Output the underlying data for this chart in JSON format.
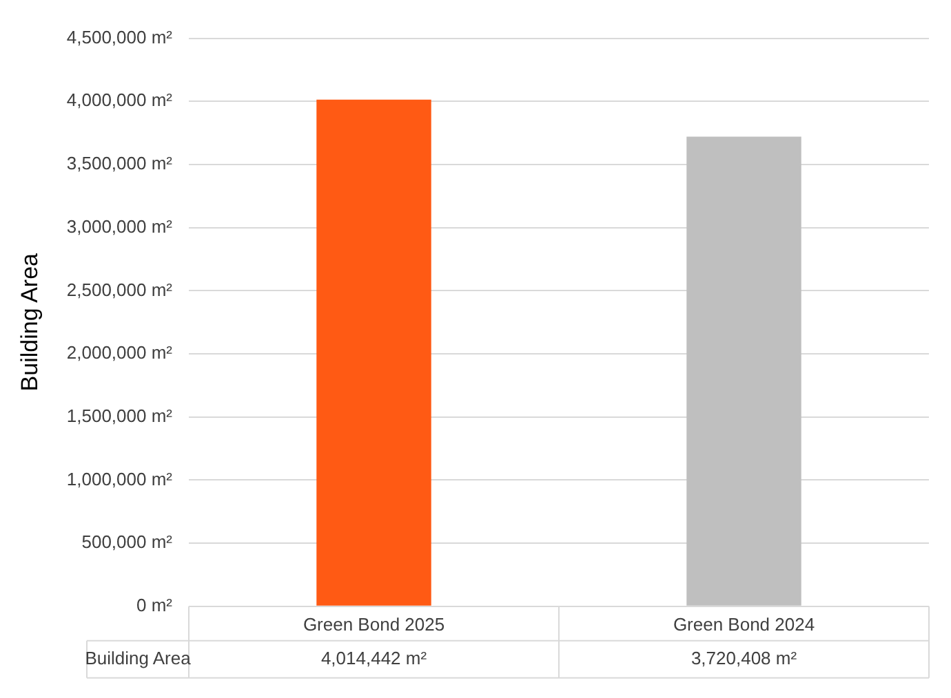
{
  "chart_data": {
    "type": "bar",
    "ylabel": "Building Area",
    "categories": [
      "Green Bond 2025",
      "Green Bond 2024"
    ],
    "series": [
      {
        "name": "Building Area",
        "colors": [
          "#ff5a14",
          "#bfbfbf"
        ],
        "values": [
          4014442,
          3720408
        ],
        "value_labels": [
          "4,014,442 m²",
          "3,720,408 m²"
        ]
      }
    ],
    "ylim": [
      0,
      4500000
    ],
    "yticks": [
      {
        "value": 0,
        "label": "0 m²"
      },
      {
        "value": 500000,
        "label": "500,000 m²"
      },
      {
        "value": 1000000,
        "label": "1,000,000 m²"
      },
      {
        "value": 1500000,
        "label": "1,500,000 m²"
      },
      {
        "value": 2000000,
        "label": "2,000,000 m²"
      },
      {
        "value": 2500000,
        "label": "2,500,000 m²"
      },
      {
        "value": 3000000,
        "label": "3,000,000 m²"
      },
      {
        "value": 3500000,
        "label": "3,500,000 m²"
      },
      {
        "value": 4000000,
        "label": "4,000,000 m²"
      },
      {
        "value": 4500000,
        "label": "4,500,000 m²"
      }
    ],
    "grid": "y",
    "legend": false
  }
}
